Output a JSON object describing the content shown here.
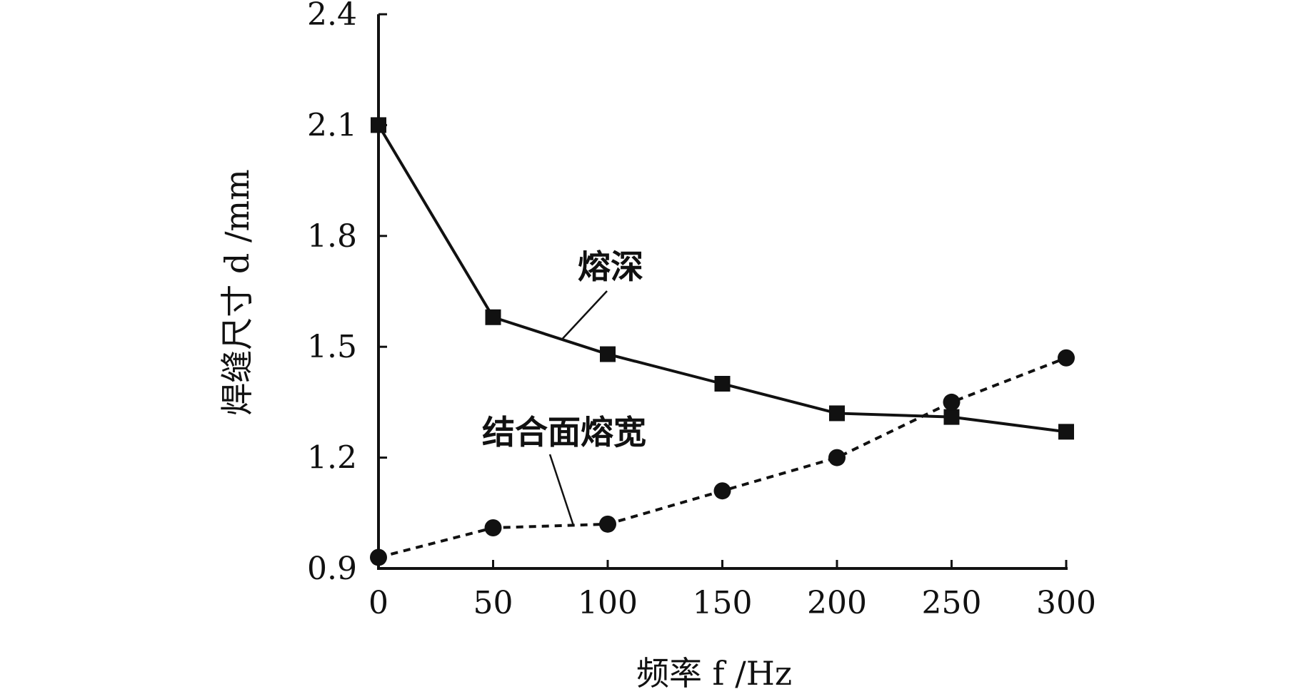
{
  "chart_data": {
    "type": "line",
    "title": "",
    "xlabel": "频率 f /Hz",
    "ylabel": "焊缝尺寸 d /mm",
    "x": [
      0,
      50,
      100,
      150,
      200,
      250,
      300
    ],
    "xticks": [
      "0",
      "50",
      "100",
      "150",
      "200",
      "250",
      "300"
    ],
    "yticks": [
      "0.9",
      "1.2",
      "1.5",
      "1.8",
      "2.1",
      "2.4"
    ],
    "xlim": [
      0,
      300
    ],
    "ylim": [
      0.9,
      2.4
    ],
    "grid": false,
    "legend": "none",
    "series": [
      {
        "name": "熔深",
        "values": [
          2.1,
          1.58,
          1.48,
          1.4,
          1.32,
          1.31,
          1.27
        ],
        "line_style": "solid",
        "marker": "square",
        "color": "#111111"
      },
      {
        "name": "结合面熔宽",
        "values": [
          0.93,
          1.01,
          1.02,
          1.11,
          1.2,
          1.35,
          1.47
        ],
        "line_style": "dashed",
        "marker": "circle",
        "color": "#111111"
      }
    ],
    "annotations": [
      {
        "text": "熔深",
        "series": 0,
        "at_x": 80
      },
      {
        "text": "结合面熔宽",
        "series": 1,
        "at_x": 85
      }
    ]
  }
}
